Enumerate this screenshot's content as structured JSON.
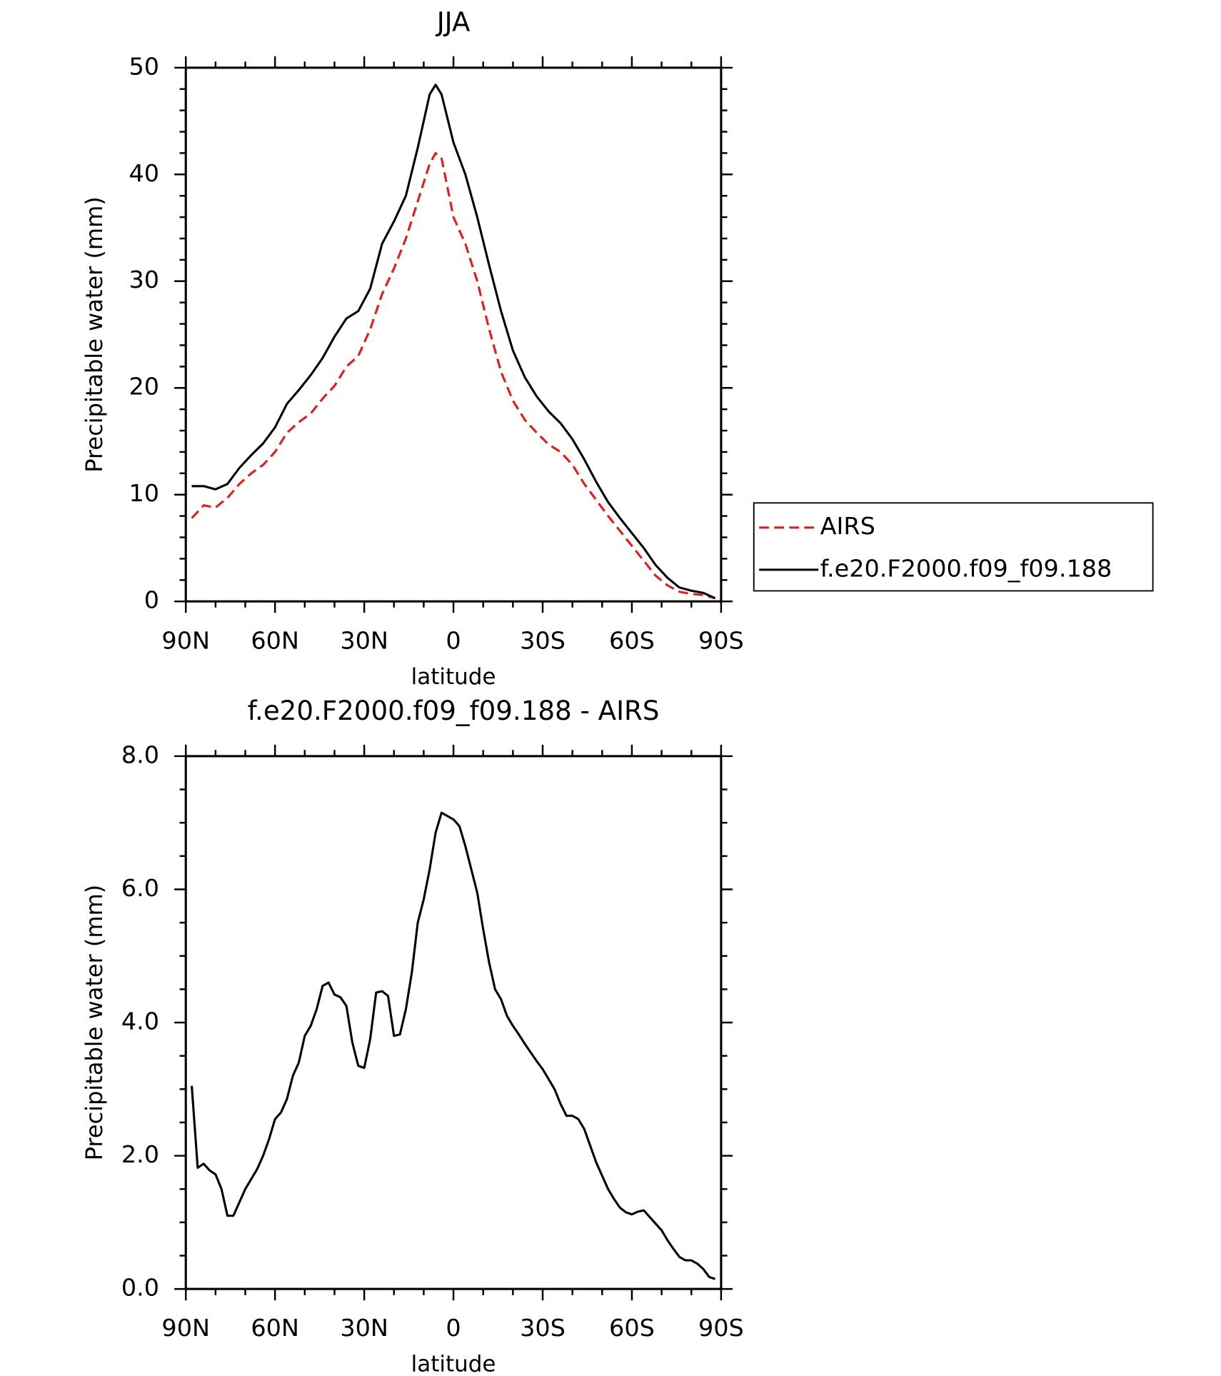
{
  "chart_data": [
    {
      "type": "line",
      "title": "JJA",
      "x_label": "latitude",
      "y_label": "Precipitable water (mm)",
      "xlim": [
        90,
        -90
      ],
      "ylim": [
        0,
        50
      ],
      "xticks": [
        {
          "value": 90,
          "label": "90N"
        },
        {
          "value": 60,
          "label": "60N"
        },
        {
          "value": 30,
          "label": "30N"
        },
        0,
        {
          "value": -30,
          "label": "30S"
        },
        {
          "value": -60,
          "label": "60S"
        },
        {
          "value": -90,
          "label": "90S"
        }
      ],
      "yticks": [
        0,
        10,
        20,
        30,
        40,
        50
      ],
      "legend": "right",
      "x": [
        88,
        84,
        80,
        76,
        72,
        68,
        64,
        60,
        56,
        52,
        48,
        44,
        40,
        36,
        32,
        28,
        24,
        20,
        16,
        12,
        8,
        6,
        4,
        0,
        -4,
        -8,
        -12,
        -16,
        -20,
        -24,
        -28,
        -32,
        -36,
        -40,
        -44,
        -48,
        -52,
        -56,
        -60,
        -64,
        -68,
        -72,
        -76,
        -80,
        -84,
        -88
      ],
      "series": [
        {
          "name": "AIRS",
          "color": "#e41a1c",
          "dash": true,
          "values": [
            7.8,
            9.0,
            8.8,
            9.7,
            11.0,
            12.0,
            12.8,
            14.0,
            15.8,
            16.8,
            17.6,
            19.0,
            20.2,
            22.0,
            23.0,
            25.5,
            28.8,
            31.2,
            34.0,
            37.5,
            41.0,
            42.0,
            41.5,
            36.0,
            33.5,
            30.0,
            25.5,
            21.5,
            18.8,
            17.0,
            15.8,
            14.7,
            14.0,
            12.8,
            11.0,
            9.5,
            8.0,
            6.6,
            5.2,
            3.8,
            2.4,
            1.5,
            0.9,
            0.7,
            0.6,
            0.3
          ]
        },
        {
          "name": "f.e20.F2000.f09_f09.188",
          "color": "#000000",
          "dash": false,
          "values": [
            10.8,
            10.8,
            10.5,
            11.0,
            12.5,
            13.7,
            14.8,
            16.3,
            18.5,
            19.8,
            21.2,
            22.8,
            24.8,
            26.5,
            27.2,
            29.3,
            33.5,
            35.6,
            38.0,
            42.5,
            47.5,
            48.4,
            47.5,
            43.0,
            40.0,
            36.0,
            31.5,
            27.2,
            23.5,
            21.0,
            19.2,
            17.8,
            16.7,
            15.2,
            13.3,
            11.2,
            9.3,
            7.8,
            6.4,
            5.0,
            3.4,
            2.2,
            1.3,
            1.0,
            0.8,
            0.3
          ]
        }
      ]
    },
    {
      "type": "line",
      "title": "f.e20.F2000.f09_f09.188 - AIRS",
      "x_label": "latitude",
      "y_label": "Precipitable water (mm)",
      "xlim": [
        90,
        -90
      ],
      "ylim": [
        0,
        8
      ],
      "xticks": [
        {
          "value": 90,
          "label": "90N"
        },
        {
          "value": 60,
          "label": "60N"
        },
        {
          "value": 30,
          "label": "30N"
        },
        0,
        {
          "value": -30,
          "label": "30S"
        },
        {
          "value": -60,
          "label": "60S"
        },
        {
          "value": -90,
          "label": "90S"
        }
      ],
      "yticks": [
        {
          "value": 0,
          "label": "0.0"
        },
        {
          "value": 2,
          "label": "2.0"
        },
        {
          "value": 4,
          "label": "4.0"
        },
        {
          "value": 6,
          "label": "6.0"
        },
        {
          "value": 8,
          "label": "8.0"
        }
      ],
      "x": [
        88,
        86,
        84,
        82,
        80,
        78,
        76,
        74,
        72,
        70,
        68,
        66,
        64,
        62,
        60,
        58,
        56,
        54,
        52,
        50,
        48,
        46,
        44,
        42,
        40,
        38,
        36,
        34,
        32,
        30,
        28,
        26,
        24,
        22,
        20,
        18,
        16,
        14,
        12,
        10,
        8,
        6,
        4,
        2,
        0,
        -2,
        -4,
        -6,
        -8,
        -10,
        -12,
        -14,
        -16,
        -18,
        -20,
        -22,
        -24,
        -26,
        -28,
        -30,
        -32,
        -34,
        -36,
        -38,
        -40,
        -42,
        -44,
        -46,
        -48,
        -50,
        -52,
        -54,
        -56,
        -58,
        -60,
        -62,
        -64,
        -66,
        -68,
        -70,
        -72,
        -74,
        -76,
        -78,
        -80,
        -82,
        -84,
        -86,
        -88
      ],
      "series": [
        {
          "color": "#000000",
          "dash": false,
          "values": [
            3.05,
            1.82,
            1.88,
            1.78,
            1.72,
            1.5,
            1.1,
            1.1,
            1.3,
            1.5,
            1.65,
            1.8,
            2.0,
            2.25,
            2.55,
            2.65,
            2.85,
            3.2,
            3.4,
            3.8,
            3.95,
            4.2,
            4.55,
            4.6,
            4.42,
            4.38,
            4.25,
            3.7,
            3.35,
            3.32,
            3.75,
            4.45,
            4.47,
            4.4,
            3.8,
            3.82,
            4.2,
            4.75,
            5.5,
            5.85,
            6.3,
            6.85,
            7.15,
            7.1,
            7.05,
            6.95,
            6.65,
            6.3,
            5.95,
            5.4,
            4.9,
            4.5,
            4.35,
            4.1,
            3.95,
            3.82,
            3.68,
            3.55,
            3.42,
            3.3,
            3.15,
            3.0,
            2.78,
            2.6,
            2.6,
            2.55,
            2.4,
            2.15,
            1.9,
            1.7,
            1.5,
            1.35,
            1.22,
            1.15,
            1.12,
            1.16,
            1.18,
            1.08,
            0.98,
            0.88,
            0.73,
            0.6,
            0.48,
            0.43,
            0.43,
            0.38,
            0.3,
            0.18,
            0.15
          ]
        }
      ]
    }
  ]
}
